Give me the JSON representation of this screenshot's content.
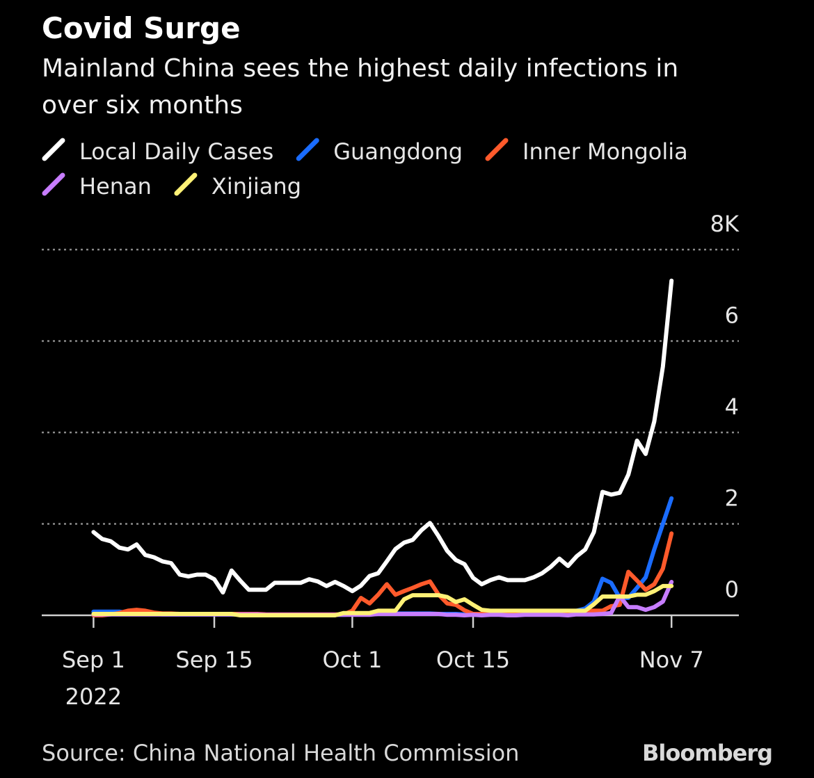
{
  "chart_data": {
    "type": "line",
    "title": "Covid Surge",
    "subtitle": [
      "Mainland China sees the highest daily infections in",
      "over six months"
    ],
    "source": "Source: China National Health Commission",
    "brand": "Bloomberg",
    "x": [
      "2022-09-01",
      "2022-09-02",
      "2022-09-03",
      "2022-09-04",
      "2022-09-05",
      "2022-09-06",
      "2022-09-07",
      "2022-09-08",
      "2022-09-09",
      "2022-09-10",
      "2022-09-11",
      "2022-09-12",
      "2022-09-13",
      "2022-09-14",
      "2022-09-15",
      "2022-09-16",
      "2022-09-17",
      "2022-09-18",
      "2022-09-19",
      "2022-09-20",
      "2022-09-21",
      "2022-09-22",
      "2022-09-23",
      "2022-09-24",
      "2022-09-25",
      "2022-09-26",
      "2022-09-27",
      "2022-09-28",
      "2022-09-29",
      "2022-09-30",
      "2022-10-01",
      "2022-10-02",
      "2022-10-03",
      "2022-10-04",
      "2022-10-05",
      "2022-10-06",
      "2022-10-07",
      "2022-10-08",
      "2022-10-09",
      "2022-10-10",
      "2022-10-11",
      "2022-10-12",
      "2022-10-13",
      "2022-10-14",
      "2022-10-15",
      "2022-10-16",
      "2022-10-17",
      "2022-10-18",
      "2022-10-19",
      "2022-10-20",
      "2022-10-21",
      "2022-10-22",
      "2022-10-23",
      "2022-10-24",
      "2022-10-25",
      "2022-10-26",
      "2022-10-27",
      "2022-10-28",
      "2022-10-29",
      "2022-10-30",
      "2022-10-31",
      "2022-11-01",
      "2022-11-02",
      "2022-11-03",
      "2022-11-04",
      "2022-11-05",
      "2022-11-06",
      "2022-11-07"
    ],
    "series": [
      {
        "name": "Local Daily Cases",
        "color": "#ffffff",
        "values": [
          1.82,
          1.67,
          1.62,
          1.48,
          1.44,
          1.55,
          1.32,
          1.27,
          1.18,
          1.14,
          0.89,
          0.85,
          0.89,
          0.89,
          0.79,
          0.5,
          0.98,
          0.76,
          0.56,
          0.56,
          0.56,
          0.71,
          0.71,
          0.71,
          0.71,
          0.79,
          0.74,
          0.64,
          0.73,
          0.64,
          0.53,
          0.65,
          0.86,
          0.92,
          1.18,
          1.45,
          1.59,
          1.65,
          1.86,
          2.02,
          1.73,
          1.41,
          1.21,
          1.12,
          0.82,
          0.68,
          0.77,
          0.83,
          0.77,
          0.77,
          0.77,
          0.83,
          0.92,
          1.06,
          1.24,
          1.08,
          1.29,
          1.44,
          1.82,
          2.7,
          2.64,
          2.68,
          3.08,
          3.82,
          3.53,
          4.24,
          5.44,
          7.32
        ]
      },
      {
        "name": "Guangdong",
        "color": "#1a6cff",
        "values": [
          0.08,
          0.08,
          0.08,
          0.08,
          0.05,
          0.04,
          0.03,
          0.03,
          0.02,
          0.02,
          0.02,
          0.02,
          0.02,
          0.02,
          0.02,
          0.02,
          0.02,
          0.02,
          0.02,
          0.02,
          0.01,
          0.01,
          0.01,
          0.01,
          0.01,
          0.01,
          0.01,
          0.01,
          0.01,
          0.01,
          0.02,
          0.02,
          0.02,
          0.03,
          0.03,
          0.04,
          0.04,
          0.04,
          0.04,
          0.04,
          0.03,
          0.03,
          0.03,
          0.02,
          0.02,
          0.02,
          0.03,
          0.03,
          0.04,
          0.05,
          0.05,
          0.06,
          0.06,
          0.07,
          0.07,
          0.08,
          0.1,
          0.15,
          0.3,
          0.8,
          0.71,
          0.38,
          0.38,
          0.6,
          0.83,
          1.44,
          2.0,
          2.56
        ]
      },
      {
        "name": "Inner Mongolia",
        "color": "#ff5a2b",
        "values": [
          0,
          0,
          0.02,
          0.05,
          0.1,
          0.12,
          0.1,
          0.06,
          0.04,
          0.04,
          0.03,
          0.03,
          0.03,
          0.03,
          0.03,
          0.03,
          0.03,
          0.03,
          0.03,
          0.03,
          0.02,
          0.02,
          0.02,
          0.02,
          0.02,
          0.02,
          0.02,
          0.02,
          0.02,
          0.02,
          0.1,
          0.38,
          0.26,
          0.45,
          0.68,
          0.45,
          0.53,
          0.6,
          0.68,
          0.74,
          0.45,
          0.26,
          0.23,
          0.11,
          0.03,
          0.03,
          0.04,
          0.04,
          0.05,
          0.05,
          0.05,
          0.05,
          0.06,
          0.06,
          0.06,
          0.07,
          0.08,
          0.09,
          0.1,
          0.1,
          0.2,
          0.23,
          0.95,
          0.76,
          0.56,
          0.68,
          1.02,
          1.79
        ]
      },
      {
        "name": "Henan",
        "color": "#c77dff",
        "values": [
          0.02,
          0.02,
          0.02,
          0.02,
          0.02,
          0.02,
          0.02,
          0.02,
          0.02,
          0.02,
          0.02,
          0.02,
          0.02,
          0.02,
          0.02,
          0.02,
          0.02,
          0.02,
          0.02,
          0.02,
          0.01,
          0.01,
          0.01,
          0.01,
          0.01,
          0.01,
          0.01,
          0.01,
          0.01,
          0.01,
          0.01,
          0.01,
          0.01,
          0.03,
          0.03,
          0.03,
          0.03,
          0.03,
          0.03,
          0.03,
          0.03,
          0.01,
          0.01,
          0,
          0.01,
          0,
          0.01,
          0.01,
          0,
          0,
          0.01,
          0.01,
          0.01,
          0.01,
          0.01,
          0,
          0.02,
          0.02,
          0.02,
          0.03,
          0.05,
          0.42,
          0.18,
          0.18,
          0.12,
          0.18,
          0.3,
          0.73
        ]
      },
      {
        "name": "Xinjiang",
        "color": "#fff176",
        "values": [
          0.03,
          0.03,
          0.03,
          0.03,
          0.03,
          0.03,
          0.03,
          0.03,
          0.03,
          0.03,
          0.03,
          0.03,
          0.03,
          0.03,
          0.03,
          0.03,
          0.03,
          0,
          0,
          0,
          0,
          0,
          0,
          0,
          0,
          0,
          0,
          0,
          0,
          0.05,
          0.05,
          0.05,
          0.05,
          0.1,
          0.1,
          0.1,
          0.35,
          0.44,
          0.44,
          0.44,
          0.44,
          0.4,
          0.29,
          0.35,
          0.23,
          0.12,
          0.1,
          0.1,
          0.1,
          0.1,
          0.1,
          0.1,
          0.1,
          0.1,
          0.1,
          0.1,
          0.1,
          0.1,
          0.24,
          0.41,
          0.41,
          0.41,
          0.41,
          0.45,
          0.45,
          0.53,
          0.64,
          0.64
        ]
      }
    ],
    "xlim": [
      "2022-08-26",
      "2022-11-14"
    ],
    "xticks": [
      {
        "value": "2022-09-01",
        "label": "Sep 1"
      },
      {
        "value": "2022-09-15",
        "label": "Sep 15"
      },
      {
        "value": "2022-10-01",
        "label": "Oct 1"
      },
      {
        "value": "2022-10-15",
        "label": "Oct 15"
      },
      {
        "value": "2022-11-07",
        "label": "Nov 7"
      }
    ],
    "x_year_label": "2022",
    "ylim": [
      0,
      8
    ],
    "yticks": [
      0,
      2,
      4,
      6,
      {
        "value": 8,
        "label": "8K"
      }
    ],
    "grid": true
  }
}
